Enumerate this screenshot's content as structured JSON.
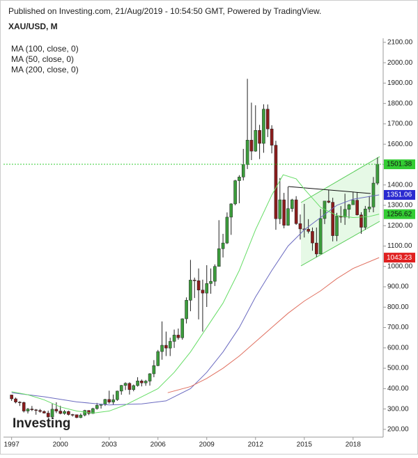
{
  "header": "Published on Investing.com, 21/Aug/2019 - 10:54:50 GMT, Powered by TradingView.",
  "chart_data": {
    "type": "candlestick",
    "title": "XAU/USD, M",
    "logo": "Investing",
    "xlim": [
      1996.5,
      2019.85
    ],
    "xticks": [
      1997,
      2000,
      2003,
      2006,
      2009,
      2012,
      2015,
      2018
    ],
    "ylim": [
      162,
      2120
    ],
    "yticks": [
      {
        "value": 200,
        "label": "200.00"
      },
      {
        "value": 300,
        "label": "300.00"
      },
      {
        "value": 400,
        "label": "400.00"
      },
      {
        "value": 500,
        "label": "500.00"
      },
      {
        "value": 600,
        "label": "600.00"
      },
      {
        "value": 700,
        "label": "700.00"
      },
      {
        "value": 800,
        "label": "800.00"
      },
      {
        "value": 900,
        "label": "900.00"
      },
      {
        "value": 1000,
        "label": "1000.00"
      },
      {
        "value": 1100,
        "label": "1100.00"
      },
      {
        "value": 1200,
        "label": "1200.00"
      },
      {
        "value": 1300,
        "label": "1300.00"
      },
      {
        "value": 1400,
        "label": "1400.00"
      },
      {
        "value": 1500,
        "label": "1500.00"
      },
      {
        "value": 1600,
        "label": "1600.00"
      },
      {
        "value": 1700,
        "label": "1700.00"
      },
      {
        "value": 1800,
        "label": "1800.00"
      },
      {
        "value": 1900,
        "label": "1900.00"
      },
      {
        "value": 2000,
        "label": "2000.00"
      },
      {
        "value": 2100,
        "label": "2100.00"
      }
    ],
    "up_color": "#3c9c3c",
    "down_color": "#8b1c1c",
    "last_color": "#33cc33",
    "x": [
      1997,
      1997.25,
      1997.5,
      1997.75,
      1998,
      1998.25,
      1998.5,
      1998.75,
      1999,
      1999.25,
      1999.5,
      1999.75,
      2000,
      2000.25,
      2000.5,
      2000.75,
      2001,
      2001.25,
      2001.5,
      2001.75,
      2002,
      2002.25,
      2002.5,
      2002.75,
      2003,
      2003.25,
      2003.5,
      2003.75,
      2004,
      2004.25,
      2004.5,
      2004.75,
      2005,
      2005.25,
      2005.5,
      2005.75,
      2006,
      2006.25,
      2006.5,
      2006.75,
      2007,
      2007.25,
      2007.5,
      2007.75,
      2008,
      2008.25,
      2008.5,
      2008.75,
      2009,
      2009.25,
      2009.5,
      2009.75,
      2010,
      2010.25,
      2010.5,
      2010.75,
      2011,
      2011.25,
      2011.5,
      2011.75,
      2012,
      2012.25,
      2012.5,
      2012.75,
      2013,
      2013.25,
      2013.5,
      2013.75,
      2014,
      2014.25,
      2014.5,
      2014.75,
      2015,
      2015.25,
      2015.5,
      2015.75,
      2016,
      2016.25,
      2016.5,
      2016.75,
      2017,
      2017.25,
      2017.5,
      2017.75,
      2018,
      2018.25,
      2018.5,
      2018.75,
      2019,
      2019.25,
      2019.5
    ],
    "candles": [
      [
        369,
        370,
        340,
        350
      ],
      [
        350,
        356,
        328,
        334
      ],
      [
        334,
        338,
        315,
        332
      ],
      [
        332,
        336,
        283,
        290
      ],
      [
        290,
        305,
        278,
        300
      ],
      [
        300,
        315,
        290,
        296
      ],
      [
        296,
        300,
        272,
        293
      ],
      [
        293,
        300,
        282,
        288
      ],
      [
        288,
        293,
        278,
        280
      ],
      [
        280,
        292,
        256,
        261
      ],
      [
        261,
        326,
        252,
        299
      ],
      [
        299,
        333,
        280,
        290
      ],
      [
        290,
        316,
        274,
        278
      ],
      [
        278,
        295,
        272,
        288
      ],
      [
        288,
        292,
        268,
        273
      ],
      [
        273,
        276,
        263,
        272
      ],
      [
        272,
        273,
        255,
        258
      ],
      [
        258,
        278,
        255,
        270
      ],
      [
        270,
        296,
        264,
        293
      ],
      [
        293,
        294,
        270,
        278
      ],
      [
        278,
        306,
        276,
        302
      ],
      [
        302,
        330,
        297,
        318
      ],
      [
        318,
        325,
        302,
        324
      ],
      [
        324,
        350,
        315,
        347
      ],
      [
        347,
        390,
        326,
        334
      ],
      [
        334,
        371,
        322,
        346
      ],
      [
        346,
        390,
        340,
        388
      ],
      [
        388,
        418,
        370,
        416
      ],
      [
        416,
        431,
        393,
        426
      ],
      [
        426,
        431,
        371,
        395
      ],
      [
        395,
        420,
        387,
        415
      ],
      [
        415,
        456,
        410,
        438
      ],
      [
        438,
        445,
        411,
        428
      ],
      [
        428,
        443,
        414,
        437
      ],
      [
        437,
        476,
        415,
        473
      ],
      [
        473,
        540,
        456,
        513
      ],
      [
        513,
        590,
        510,
        582
      ],
      [
        582,
        730,
        542,
        613
      ],
      [
        613,
        680,
        560,
        599
      ],
      [
        599,
        650,
        560,
        632
      ],
      [
        632,
        690,
        600,
        663
      ],
      [
        663,
        695,
        640,
        650
      ],
      [
        650,
        745,
        640,
        743
      ],
      [
        743,
        848,
        720,
        834
      ],
      [
        834,
        1032,
        780,
        933
      ],
      [
        933,
        945,
        845,
        930
      ],
      [
        930,
        990,
        740,
        884
      ],
      [
        884,
        935,
        680,
        869
      ],
      [
        869,
        1006,
        801,
        916
      ],
      [
        916,
        990,
        866,
        927
      ],
      [
        927,
        1010,
        904,
        1000
      ],
      [
        1000,
        1227,
        1000,
        1087
      ],
      [
        1087,
        1160,
        1044,
        1115
      ],
      [
        1115,
        1265,
        1110,
        1242
      ],
      [
        1242,
        1310,
        1155,
        1307
      ],
      [
        1307,
        1425,
        1300,
        1421
      ],
      [
        1421,
        1448,
        1310,
        1439
      ],
      [
        1439,
        1577,
        1422,
        1500
      ],
      [
        1500,
        1921,
        1478,
        1620
      ],
      [
        1620,
        1804,
        1522,
        1566
      ],
      [
        1566,
        1791,
        1563,
        1668
      ],
      [
        1668,
        1695,
        1527,
        1604
      ],
      [
        1604,
        1796,
        1558,
        1772
      ],
      [
        1772,
        1795,
        1635,
        1675
      ],
      [
        1675,
        1693,
        1555,
        1595
      ],
      [
        1595,
        1617,
        1180,
        1234
      ],
      [
        1234,
        1434,
        1208,
        1327
      ],
      [
        1327,
        1361,
        1187,
        1202
      ],
      [
        1202,
        1392,
        1200,
        1284
      ],
      [
        1284,
        1332,
        1268,
        1327
      ],
      [
        1327,
        1345,
        1204,
        1210
      ],
      [
        1210,
        1255,
        1132,
        1184
      ],
      [
        1184,
        1307,
        1142,
        1183
      ],
      [
        1183,
        1232,
        1162,
        1172
      ],
      [
        1172,
        1191,
        1077,
        1115
      ],
      [
        1115,
        1191,
        1046,
        1061
      ],
      [
        1061,
        1282,
        1061,
        1235
      ],
      [
        1235,
        1315,
        1208,
        1321
      ],
      [
        1321,
        1375,
        1310,
        1315
      ],
      [
        1315,
        1337,
        1123,
        1151
      ],
      [
        1151,
        1263,
        1124,
        1247
      ],
      [
        1247,
        1296,
        1214,
        1242
      ],
      [
        1242,
        1357,
        1204,
        1280
      ],
      [
        1280,
        1307,
        1236,
        1303
      ],
      [
        1303,
        1366,
        1303,
        1325
      ],
      [
        1325,
        1365,
        1250,
        1253
      ],
      [
        1253,
        1266,
        1160,
        1192
      ],
      [
        1192,
        1297,
        1180,
        1282
      ],
      [
        1282,
        1346,
        1266,
        1292
      ],
      [
        1292,
        1439,
        1266,
        1409
      ],
      [
        1409,
        1535,
        1400,
        1501.38
      ]
    ],
    "series": [
      {
        "name": "MA (100, close, 0)",
        "color": "#2a2ad0",
        "line_color": "#6a6ac0",
        "x": [
          1997,
          1999,
          2001,
          2003,
          2005,
          2006.5,
          2008,
          2009,
          2010,
          2011,
          2012,
          2013,
          2014,
          2015,
          2016,
          2017,
          2018,
          2019.6
        ],
        "values": [
          380,
          360,
          335,
          320,
          325,
          340,
          400,
          480,
          580,
          700,
          850,
          980,
          1100,
          1180,
          1240,
          1300,
          1330,
          1351.06
        ]
      },
      {
        "name": "MA (50, close, 0)",
        "color": "#33cc33",
        "line_color": "#66dd66",
        "x": [
          1997,
          1998,
          1999,
          2000,
          2001,
          2002,
          2003,
          2004,
          2005,
          2006,
          2007,
          2008,
          2009,
          2010,
          2011,
          2012,
          2013,
          2013.7,
          2014.5,
          2015,
          2016,
          2017,
          2018,
          2019,
          2019.6
        ],
        "values": [
          385,
          370,
          345,
          310,
          290,
          280,
          290,
          320,
          360,
          400,
          480,
          580,
          700,
          820,
          980,
          1180,
          1350,
          1450,
          1430,
          1380,
          1290,
          1250,
          1240,
          1245,
          1256.62
        ]
      },
      {
        "name": "MA (200, close, 0)",
        "color": "#e02020",
        "line_color": "#e07060",
        "x": [
          2006.6,
          2008,
          2009,
          2010,
          2011,
          2012,
          2013,
          2014,
          2015,
          2016,
          2017,
          2018,
          2019.6
        ],
        "values": [
          380,
          410,
          450,
          500,
          560,
          630,
          700,
          770,
          830,
          880,
          940,
          990,
          1043.23
        ]
      }
    ]
  }
}
